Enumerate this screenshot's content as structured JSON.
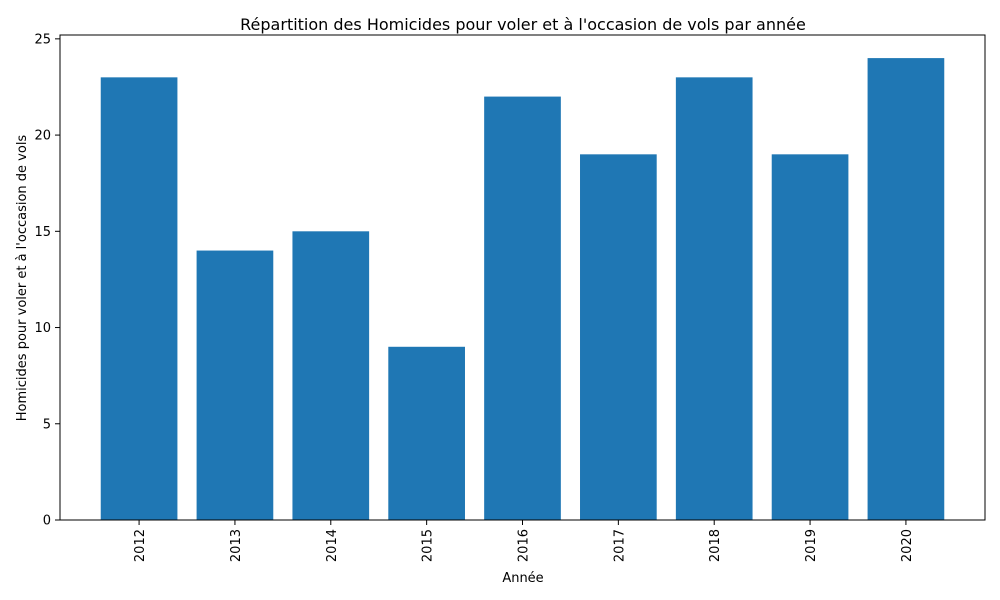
{
  "chart_data": {
    "type": "bar",
    "title": "Répartition des Homicides pour voler et à l'occasion de vols par année",
    "xlabel": "Année",
    "ylabel": "Homicides pour voler et à l'occasion de vols",
    "categories": [
      "2012",
      "2013",
      "2014",
      "2015",
      "2016",
      "2017",
      "2018",
      "2019",
      "2020"
    ],
    "values": [
      23,
      14,
      15,
      9,
      22,
      19,
      23,
      19,
      24
    ],
    "ylim": [
      0,
      25.2
    ],
    "yticks": [
      0,
      5,
      10,
      15,
      20,
      25
    ],
    "bar_color": "#1f77b4",
    "grid": false,
    "x_tick_rotation": "vertical"
  }
}
